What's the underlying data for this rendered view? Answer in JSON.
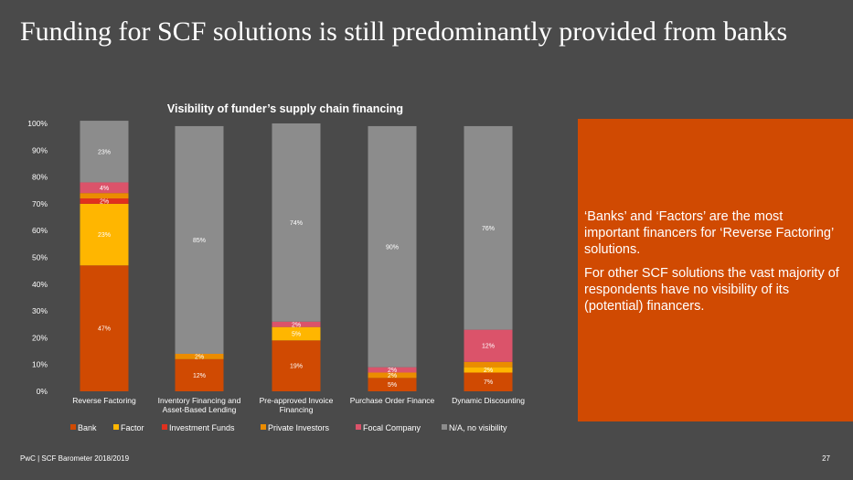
{
  "slide": {
    "title": "Funding for SCF solutions is still predominantly provided from banks",
    "footer": "PwC | SCF Barometer 2018/2019",
    "page_number": "27"
  },
  "callout": {
    "paragraph1": "‘Banks’ and ‘Factors’ are the most important financers for ‘Reverse Factoring’ solutions.",
    "paragraph2": "For other SCF solutions the vast majority of respondents have no visibility of its (potential) financers."
  },
  "colors": {
    "background": "#4a4a4a",
    "callout": "#d04a02"
  },
  "chart_data": {
    "type": "bar",
    "stacked": true,
    "title": "Visibility of funder’s supply chain financing",
    "ylim": [
      0,
      100
    ],
    "yticks": [
      "0%",
      "10%",
      "20%",
      "30%",
      "40%",
      "50%",
      "60%",
      "70%",
      "80%",
      "90%",
      "100%"
    ],
    "categories": [
      [
        "Reverse Factoring"
      ],
      [
        "Inventory Financing and",
        "Asset-Based Lending"
      ],
      [
        "Pre-approved Invoice",
        "Financing"
      ],
      [
        "Purchase Order Finance"
      ],
      [
        "Dynamic Discounting"
      ]
    ],
    "legend_position": "bottom",
    "series": [
      {
        "name": "Bank",
        "color": "#d04a02",
        "values": [
          47,
          12,
          19,
          5,
          7
        ],
        "labels": [
          "47%",
          "12%",
          "19%",
          "5%",
          "7%"
        ]
      },
      {
        "name": "Factor",
        "color": "#ffb600",
        "values": [
          23,
          0,
          5,
          0,
          2
        ],
        "labels": [
          "23%",
          "",
          "5%",
          "",
          "2%"
        ]
      },
      {
        "name": "Investment Funds",
        "color": "#e0301e",
        "values": [
          2,
          0,
          0,
          0,
          0
        ],
        "labels": [
          "2%",
          "",
          "",
          "",
          ""
        ]
      },
      {
        "name": "Private Investors",
        "color": "#eb8c00",
        "values": [
          2,
          2,
          0,
          2,
          2
        ],
        "labels": [
          "",
          "2%",
          "",
          "2%",
          ""
        ]
      },
      {
        "name": "Focal Company",
        "color": "#db536a",
        "values": [
          4,
          0,
          2,
          2,
          12
        ],
        "labels": [
          "4%",
          "",
          "2%",
          "2%",
          "12%"
        ]
      },
      {
        "name": "N/A, no visibility",
        "color": "#8c8c8c",
        "values": [
          23,
          85,
          74,
          90,
          76
        ],
        "labels": [
          "23%",
          "85%",
          "74%",
          "90%",
          "76%"
        ]
      }
    ]
  }
}
